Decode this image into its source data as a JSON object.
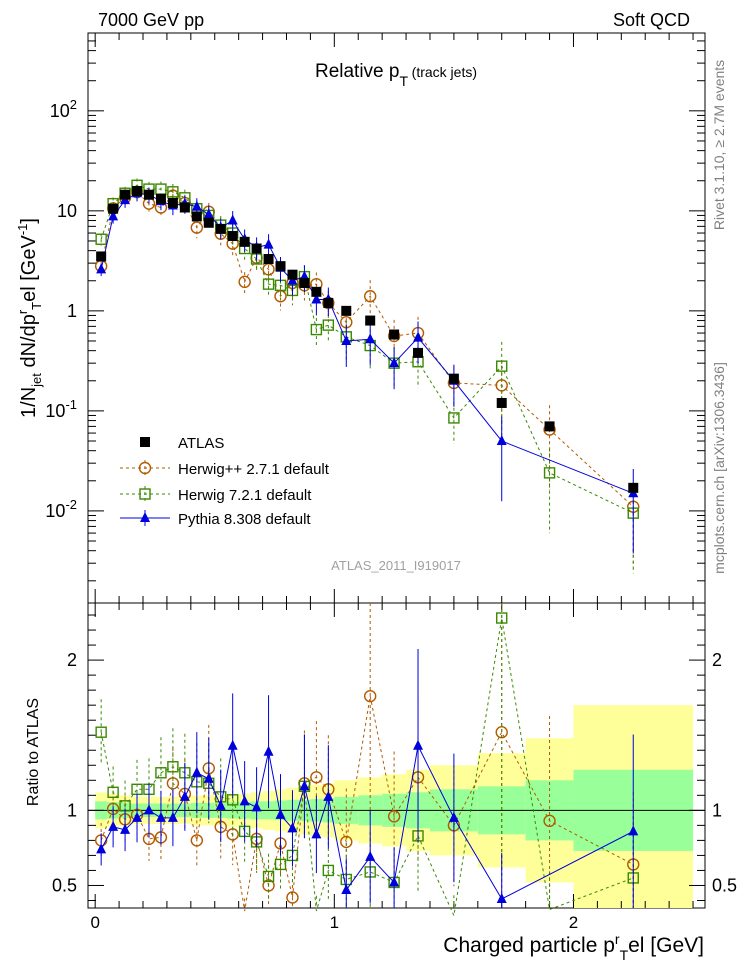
{
  "header": {
    "left": "7000 GeV pp",
    "right": "Soft QCD"
  },
  "side_labels": {
    "rivet": "Rivet 3.1.10, ≥ 2.7M events",
    "mcplots": "mcplots.cern.ch [arXiv:1306.3436]"
  },
  "chart_data": [
    {
      "type": "scatter",
      "title": "Relative p_T (track jets)",
      "watermark": "ATLAS_2011_I919017",
      "ylabel": "1/N_jet dN/dp^r_T el [GeV^-1]",
      "yscale": "log",
      "ylim": [
        0.0012,
        600
      ],
      "xlim": [
        -0.03,
        2.55
      ],
      "yticks": [
        "10^-2",
        "10^-1",
        "1",
        "10",
        "10^2"
      ],
      "legend_position": "lower-left",
      "series": [
        {
          "name": "ATLAS",
          "color": "#000000",
          "marker": "filled-square",
          "x": [
            0.025,
            0.075,
            0.125,
            0.175,
            0.225,
            0.275,
            0.325,
            0.375,
            0.425,
            0.475,
            0.525,
            0.575,
            0.625,
            0.675,
            0.725,
            0.775,
            0.825,
            0.875,
            0.925,
            0.975,
            1.05,
            1.15,
            1.25,
            1.35,
            1.5,
            1.7,
            1.9,
            2.25
          ],
          "y": [
            3.5,
            10.5,
            14.5,
            15.8,
            14.5,
            13.2,
            12.0,
            10.8,
            8.8,
            7.6,
            6.6,
            5.6,
            4.9,
            4.2,
            3.3,
            2.8,
            2.3,
            1.9,
            1.55,
            1.2,
            1.0,
            0.8,
            0.58,
            0.38,
            0.21,
            0.12,
            0.07,
            0.017
          ]
        },
        {
          "name": "Herwig++ 2.7.1 default",
          "color": "#b35a00",
          "marker": "open-circle",
          "x": [
            0.025,
            0.075,
            0.125,
            0.175,
            0.225,
            0.275,
            0.325,
            0.375,
            0.425,
            0.475,
            0.525,
            0.575,
            0.625,
            0.675,
            0.725,
            0.775,
            0.825,
            0.875,
            0.925,
            0.975,
            1.05,
            1.15,
            1.25,
            1.35,
            1.5,
            1.7,
            1.9,
            2.25
          ],
          "y": [
            2.8,
            10.6,
            13.6,
            15.4,
            11.8,
            10.8,
            14.2,
            12.0,
            6.8,
            9.8,
            5.9,
            4.7,
            1.95,
            3.4,
            2.6,
            1.4,
            1.9,
            1.8,
            1.85,
            1.2,
            0.77,
            1.4,
            0.56,
            0.6,
            0.19,
            0.18,
            0.065,
            0.011
          ]
        },
        {
          "name": "Herwig 7.2.1 default",
          "color": "#3a8a00",
          "marker": "open-square",
          "x": [
            0.025,
            0.075,
            0.125,
            0.175,
            0.225,
            0.275,
            0.325,
            0.375,
            0.425,
            0.475,
            0.525,
            0.575,
            0.625,
            0.675,
            0.725,
            0.775,
            0.825,
            0.875,
            0.925,
            0.975,
            1.05,
            1.15,
            1.25,
            1.35,
            1.5,
            1.7,
            1.9,
            2.25
          ],
          "y": [
            5.2,
            11.8,
            15.0,
            18.0,
            16.5,
            16.5,
            15.5,
            13.5,
            10.5,
            9.0,
            7.2,
            6.0,
            4.2,
            3.3,
            1.85,
            1.8,
            1.6,
            2.2,
            0.65,
            0.72,
            0.55,
            0.45,
            0.3,
            0.31,
            0.085,
            0.28,
            0.024,
            0.0095
          ]
        },
        {
          "name": "Pythia 8.308 default",
          "color": "#0000dd",
          "marker": "filled-triangle",
          "x": [
            0.025,
            0.075,
            0.125,
            0.175,
            0.225,
            0.275,
            0.325,
            0.375,
            0.425,
            0.475,
            0.525,
            0.575,
            0.625,
            0.675,
            0.725,
            0.775,
            0.825,
            0.875,
            0.925,
            0.975,
            1.05,
            1.15,
            1.25,
            1.35,
            1.5,
            1.7,
            2.25
          ],
          "y": [
            2.6,
            8.8,
            12.8,
            15.0,
            14.5,
            12.5,
            11.3,
            11.8,
            11.0,
            9.2,
            6.8,
            8.0,
            5.2,
            4.3,
            4.6,
            2.7,
            2.0,
            2.2,
            1.3,
            1.3,
            0.5,
            0.52,
            0.3,
            0.54,
            0.2,
            0.05,
            0.015
          ]
        }
      ]
    },
    {
      "type": "scatter",
      "ylabel": "Ratio to ATLAS",
      "xlabel": "Charged particle p^r_T el [GeV]",
      "ylim": [
        0.35,
        2.38
      ],
      "xlim": [
        -0.03,
        2.55
      ],
      "xticks": [
        "0",
        "1",
        "2"
      ],
      "yticks": [
        "0.5",
        "1",
        "2"
      ],
      "uncertainty_band_edges": [
        0,
        0.05,
        0.1,
        0.15,
        0.2,
        0.25,
        0.3,
        0.35,
        0.4,
        0.45,
        0.5,
        0.55,
        0.6,
        0.65,
        0.7,
        0.75,
        0.8,
        0.85,
        0.9,
        0.95,
        1.0,
        1.1,
        1.2,
        1.3,
        1.4,
        1.6,
        1.8,
        2.0,
        2.5
      ],
      "stat_band_half_width": [
        0.06,
        0.055,
        0.05,
        0.045,
        0.045,
        0.045,
        0.045,
        0.045,
        0.05,
        0.05,
        0.05,
        0.055,
        0.055,
        0.06,
        0.06,
        0.065,
        0.07,
        0.07,
        0.075,
        0.08,
        0.09,
        0.1,
        0.11,
        0.12,
        0.14,
        0.16,
        0.2,
        0.27
      ],
      "total_band_half_width": [
        0.12,
        0.11,
        0.1,
        0.09,
        0.09,
        0.09,
        0.09,
        0.09,
        0.1,
        0.1,
        0.1,
        0.11,
        0.11,
        0.12,
        0.13,
        0.14,
        0.15,
        0.16,
        0.17,
        0.18,
        0.2,
        0.22,
        0.24,
        0.27,
        0.3,
        0.38,
        0.48,
        0.7
      ],
      "series": [
        {
          "name": "Herwig++ 2.7.1 default",
          "color": "#b35a00",
          "marker": "open-circle",
          "x": [
            0.025,
            0.075,
            0.125,
            0.175,
            0.225,
            0.275,
            0.325,
            0.375,
            0.425,
            0.475,
            0.525,
            0.575,
            0.625,
            0.675,
            0.725,
            0.775,
            0.825,
            0.875,
            0.925,
            0.975,
            1.05,
            1.15,
            1.25,
            1.35,
            1.5,
            1.7,
            1.9,
            2.25
          ],
          "y": [
            0.8,
            1.01,
            0.94,
            0.97,
            0.81,
            0.82,
            1.18,
            1.11,
            0.8,
            1.28,
            0.89,
            0.84,
            0.33,
            0.81,
            0.5,
            0.78,
            0.42,
            1.18,
            1.22,
            1.14,
            0.79,
            1.76,
            0.96,
            1.22,
            0.9,
            1.52,
            0.93,
            0.64
          ]
        },
        {
          "name": "Herwig 7.2.1 default",
          "color": "#3a8a00",
          "marker": "open-square",
          "x": [
            0.025,
            0.075,
            0.125,
            0.175,
            0.225,
            0.275,
            0.325,
            0.375,
            0.425,
            0.475,
            0.525,
            0.575,
            0.625,
            0.675,
            0.725,
            0.775,
            0.825,
            0.875,
            0.925,
            0.975,
            1.05,
            1.15,
            1.25,
            1.35,
            1.5,
            1.7,
            1.9,
            2.25
          ],
          "y": [
            1.52,
            1.12,
            1.03,
            1.14,
            1.14,
            1.25,
            1.29,
            1.25,
            1.19,
            1.18,
            1.09,
            1.07,
            0.86,
            0.79,
            0.56,
            0.64,
            0.7,
            1.16,
            0.33,
            0.6,
            0.54,
            0.59,
            0.52,
            0.83,
            0.3,
            2.28,
            0.34,
            0.55
          ]
        },
        {
          "name": "Pythia 8.308 default",
          "color": "#0000dd",
          "marker": "filled-triangle",
          "x": [
            0.025,
            0.075,
            0.125,
            0.175,
            0.225,
            0.275,
            0.325,
            0.375,
            0.425,
            0.475,
            0.525,
            0.575,
            0.625,
            0.675,
            0.725,
            0.775,
            0.825,
            0.875,
            0.925,
            0.975,
            1.05,
            1.15,
            1.25,
            1.35,
            1.5,
            1.7,
            2.25
          ],
          "y": [
            0.74,
            0.89,
            0.87,
            0.95,
            1.0,
            0.95,
            0.95,
            1.09,
            1.25,
            1.21,
            1.03,
            1.43,
            1.06,
            1.02,
            1.39,
            0.97,
            0.88,
            1.16,
            0.84,
            1.09,
            0.47,
            0.69,
            0.52,
            1.43,
            0.95,
            0.41,
            0.86
          ]
        }
      ]
    }
  ]
}
